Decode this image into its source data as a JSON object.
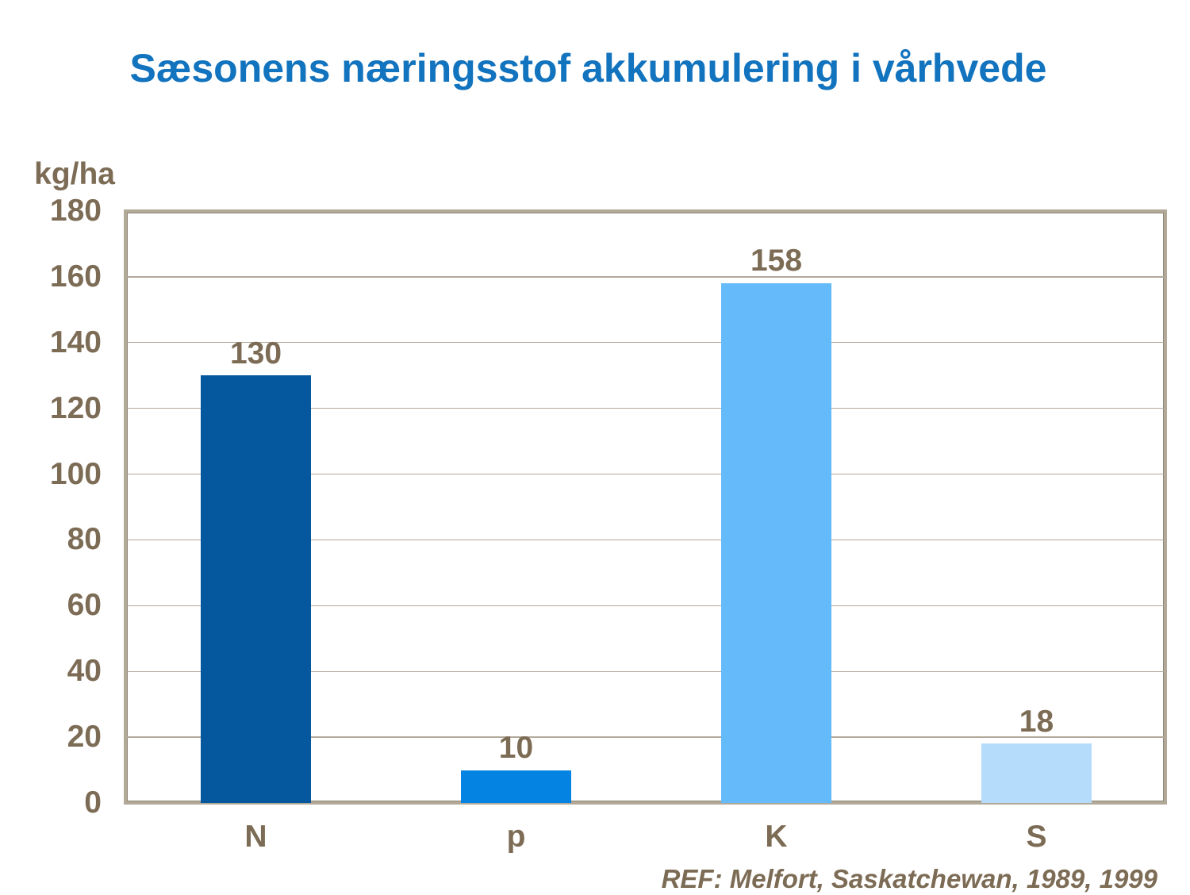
{
  "slide": {
    "reference": "REF: Melfort, Saskatchewan, 1989, 1999"
  },
  "chart_data": {
    "type": "bar",
    "title": "Sæsonens næringsstof akkumulering i vårhvede",
    "categories": [
      "N",
      "p",
      "K",
      "S"
    ],
    "values": [
      130,
      10,
      158,
      18
    ],
    "value_labels": [
      "130",
      "10",
      "158",
      "18"
    ],
    "xlabel": "",
    "ylabel": "kg/ha",
    "ylim": [
      0,
      180
    ],
    "yticks": [
      0,
      20,
      40,
      60,
      80,
      100,
      120,
      140,
      160,
      180
    ],
    "grid": true,
    "legend": false,
    "bar_colors": [
      "#05589E",
      "#0583E3",
      "#65BBFA",
      "#B6DCFC"
    ],
    "colors": {
      "title": "#1273BE",
      "axis_text": "#7D6C55",
      "plot_border": "#B3A999",
      "gridline": "#B3A99B",
      "background": "#FFFFFF"
    }
  }
}
